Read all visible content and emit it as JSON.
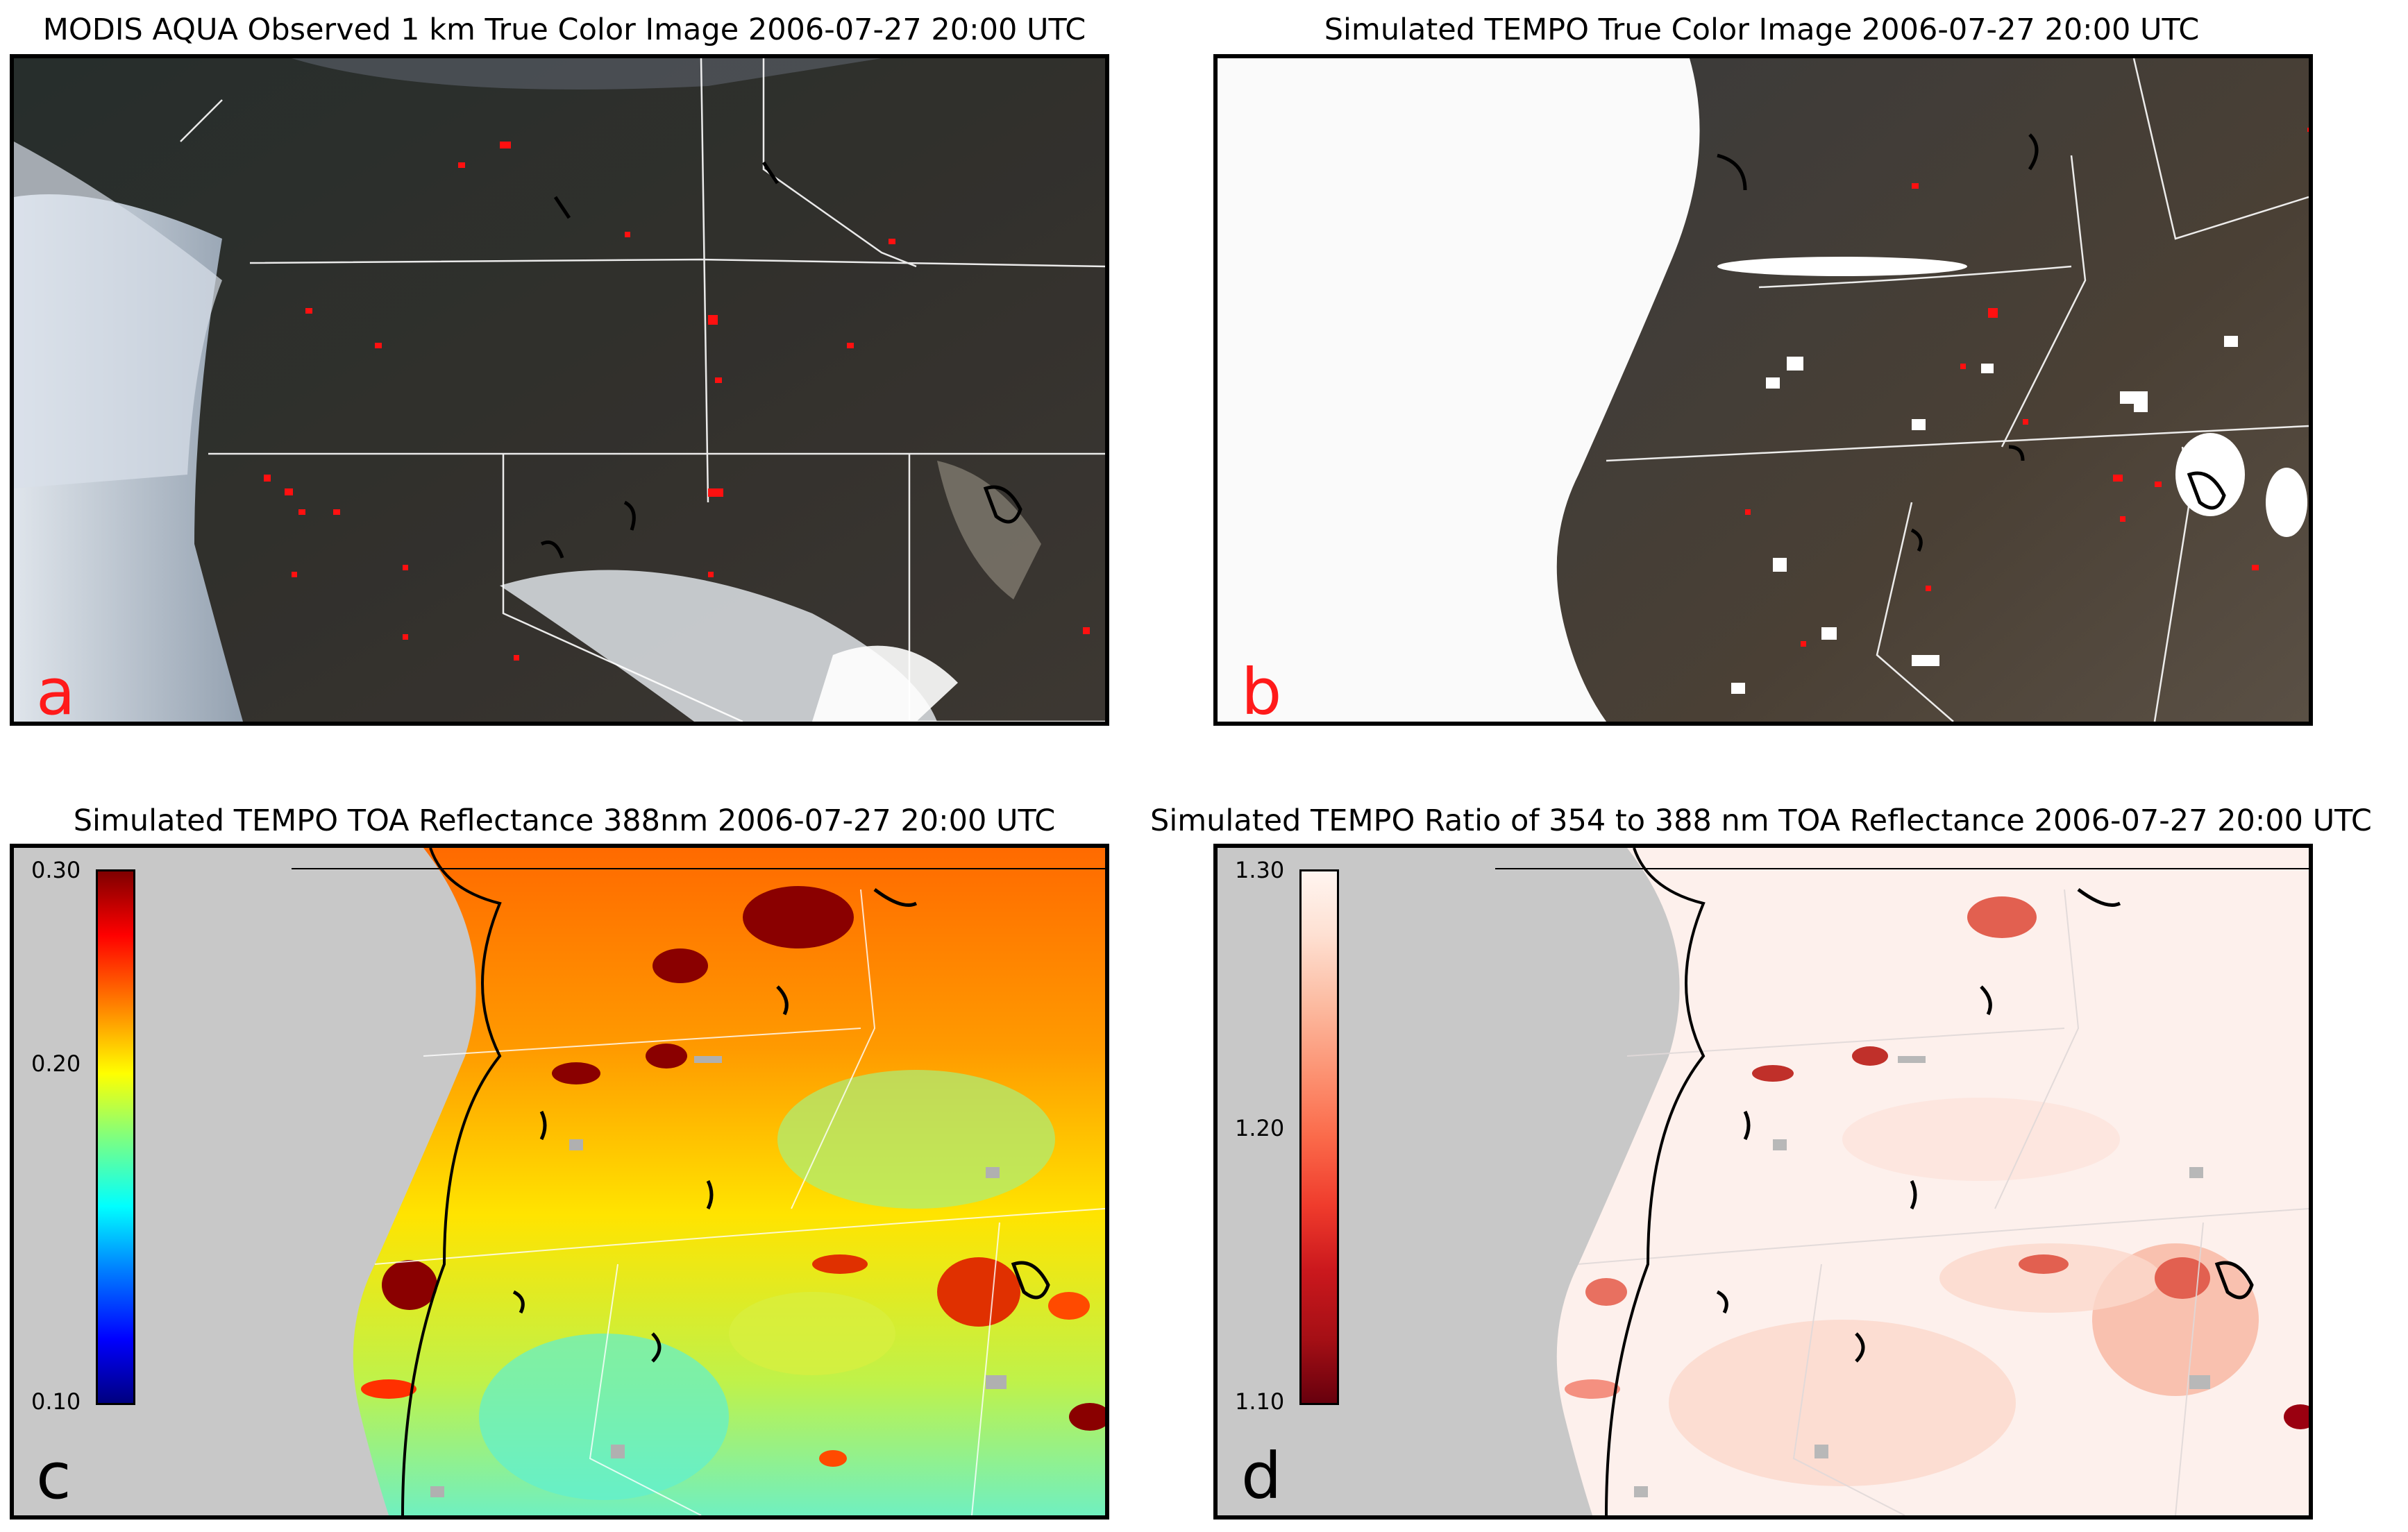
{
  "panels": [
    {
      "id": "a",
      "title": "MODIS AQUA Observed 1 km True Color Image 2006-07-27 20:00 UTC",
      "letter": "a",
      "letter_color": "#ff1a1a"
    },
    {
      "id": "b",
      "title": "Simulated TEMPO True Color Image 2006-07-27 20:00 UTC",
      "letter": "b",
      "letter_color": "#ff1a1a"
    },
    {
      "id": "c",
      "title": "Simulated TEMPO TOA Reflectance 388nm 2006-07-27 20:00 UTC",
      "letter": "c",
      "letter_color": "#000000",
      "colorbar": {
        "colormap": "jet",
        "min": "0.10",
        "mid": "0.20",
        "max": "0.30"
      }
    },
    {
      "id": "d",
      "title": "Simulated TEMPO Ratio of 354 to 388 nm TOA Reflectance 2006-07-27 20:00 UTC",
      "letter": "d",
      "letter_color": "#000000",
      "colorbar": {
        "colormap": "reds_reversed",
        "min": "1.10",
        "mid": "1.20",
        "max": "1.30"
      }
    }
  ],
  "colors": {
    "fire": "#ff1010",
    "ocean_mask": "#c8c8c8",
    "borders": "#ffffff"
  }
}
